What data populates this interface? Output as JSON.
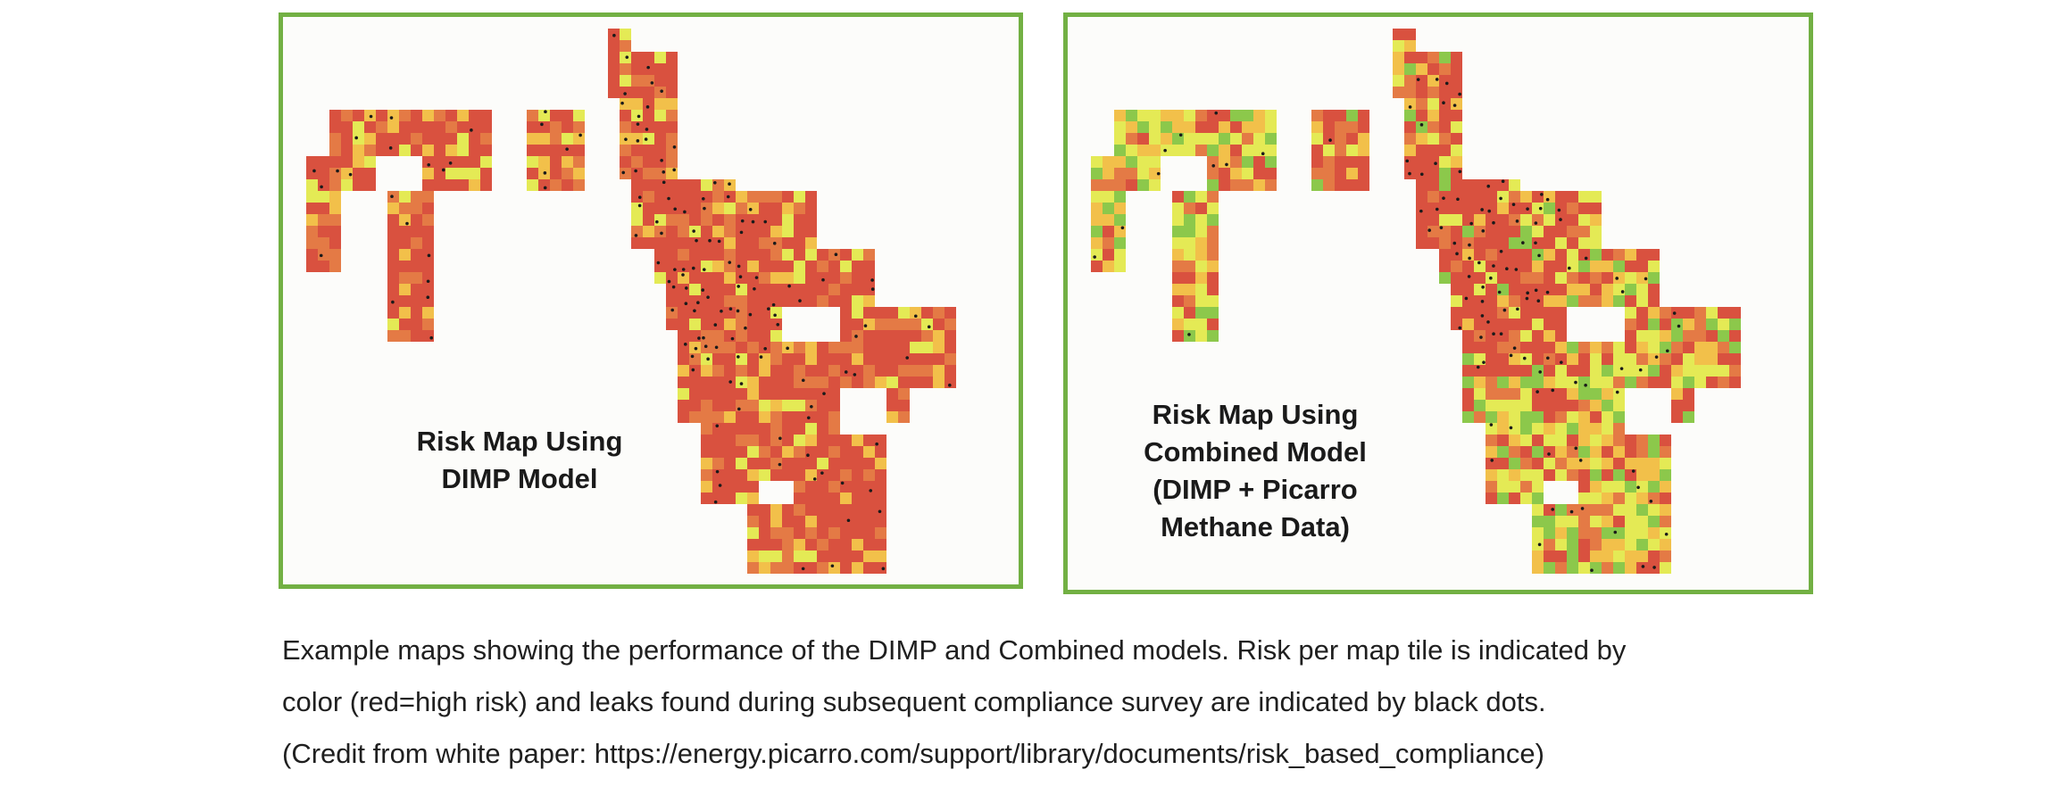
{
  "maps": [
    {
      "id": "dimp",
      "label_lines": [
        "Risk Map Using",
        "DIMP Model"
      ],
      "palette": {
        "high": "#d9513f",
        "med_high": "#e47a45",
        "medium": "#f2c04a",
        "low": "#e4ea55",
        "lowest": "#8cc84b"
      },
      "risk_bias": "high"
    },
    {
      "id": "combined",
      "label_lines": [
        "Risk Map Using",
        "Combined Model",
        "(DIMP + Picarro",
        "Methane Data)"
      ],
      "palette": {
        "high": "#d9513f",
        "med_high": "#e47a45",
        "medium": "#f2c04a",
        "low": "#e4ea55",
        "lowest": "#8cc84b"
      },
      "risk_bias": "mixed"
    }
  ],
  "legend_colors": {
    "leak_dot": "#1a1a1a",
    "border": "#72b043"
  },
  "caption": {
    "line1": "Example maps showing the performance of the DIMP and Combined models. Risk per map tile is indicated by",
    "line2": "color (red=high risk) and leaks found during subsequent compliance survey are indicated by black dots.",
    "line3": "(Credit from white paper: https://energy.picarro.com/support/library/documents/risk_based_compliance)"
  }
}
